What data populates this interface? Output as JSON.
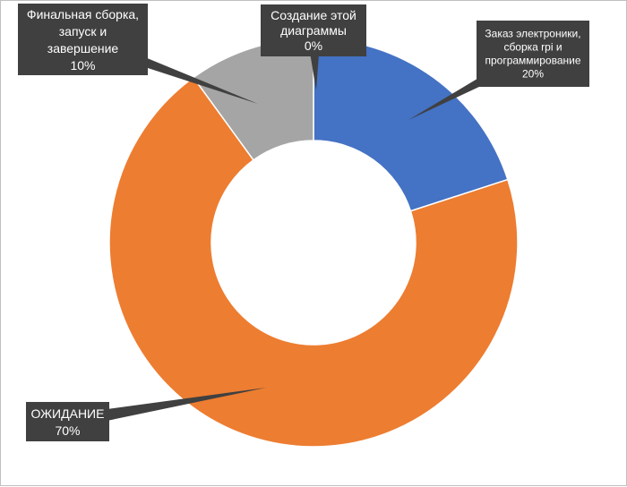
{
  "chart_data": {
    "type": "pie",
    "variant": "donut",
    "title": "",
    "legend": "none",
    "start_angle_deg": 0,
    "direction": "clockwise",
    "slices": [
      {
        "label_lines": [
          "Создание этой",
          "диаграммы"
        ],
        "value": 0,
        "value_label": "0%",
        "color": "#4472c4"
      },
      {
        "label_lines": [
          "Заказ электроники,",
          "сборка rpi и",
          "программирование"
        ],
        "value": 20,
        "value_label": "20%",
        "color": "#4472c4"
      },
      {
        "label_lines": [
          "ОЖИДАНИЕ"
        ],
        "value": 70,
        "value_label": "70%",
        "color": "#ed7d31"
      },
      {
        "label_lines": [
          "Финальная сборка,",
          "запуск и",
          "завершение"
        ],
        "value": 10,
        "value_label": "10%",
        "color": "#a5a5a5"
      }
    ],
    "data_label_style": {
      "background": "#404040",
      "text_color": "#ffffff"
    }
  }
}
